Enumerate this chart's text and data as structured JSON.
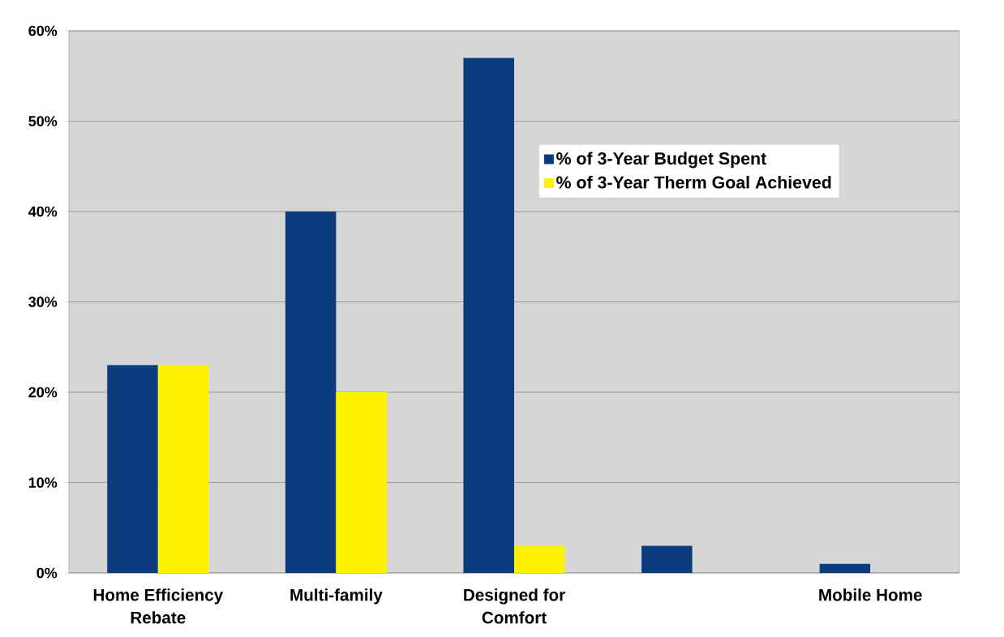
{
  "chart_data": {
    "type": "bar",
    "categories": [
      "Home Efficiency Rebate",
      "Multi-family",
      "Designed for Comfort",
      null,
      "Mobile Home"
    ],
    "series": [
      {
        "name": "% of 3-Year Budget Spent",
        "color": "#0b3c7d",
        "values": [
          23,
          40,
          57,
          3,
          1
        ]
      },
      {
        "name": "% of 3-Year Therm Goal Achieved",
        "color": "#fff200",
        "values": [
          23,
          20,
          3,
          null,
          null
        ]
      }
    ],
    "ylim": [
      0,
      60
    ],
    "yticks": [
      {
        "value": 0,
        "label": "0%"
      },
      {
        "value": 10,
        "label": "10%"
      },
      {
        "value": 20,
        "label": "20%"
      },
      {
        "value": 30,
        "label": "30%"
      },
      {
        "value": 40,
        "label": "40%"
      },
      {
        "value": 50,
        "label": "50%"
      },
      {
        "value": 60,
        "label": "60%"
      }
    ],
    "grid": "y",
    "legend": "top right"
  }
}
